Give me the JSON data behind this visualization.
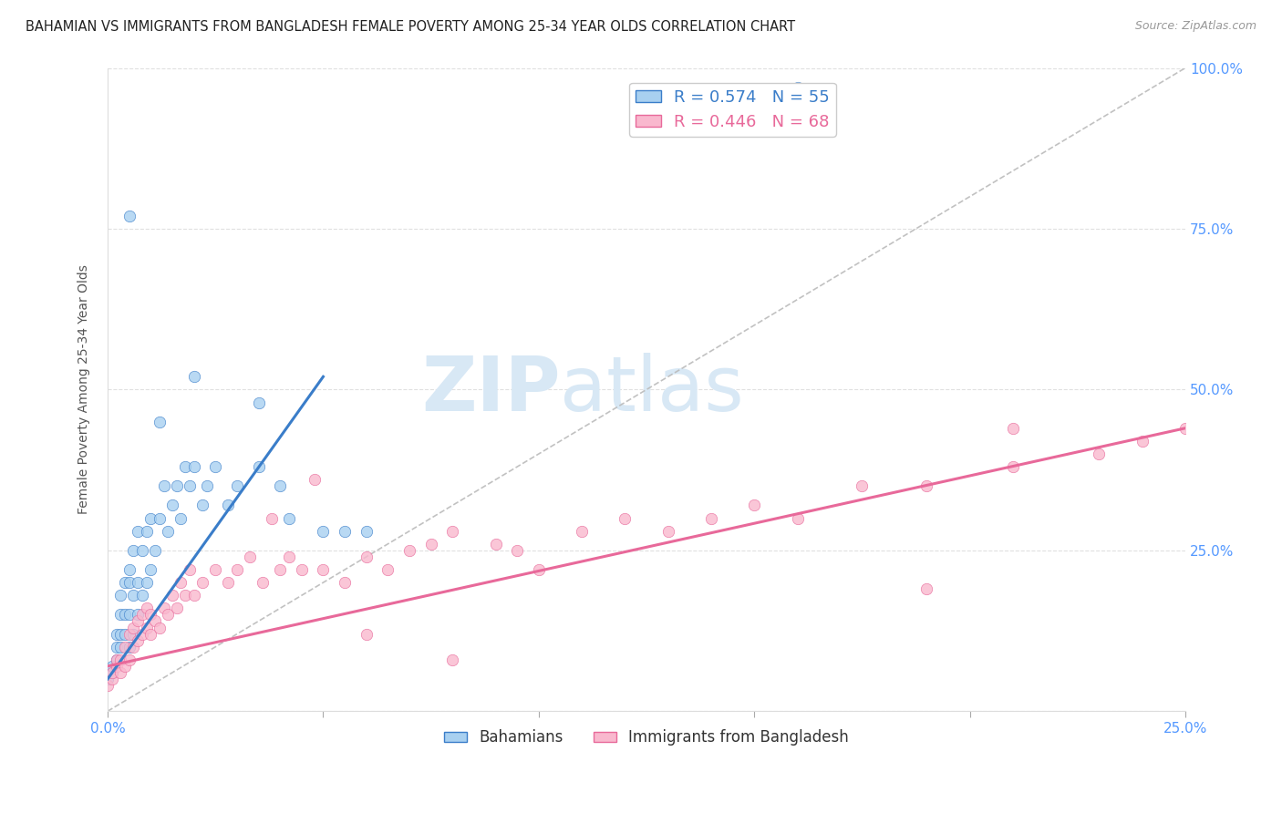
{
  "title": "BAHAMIAN VS IMMIGRANTS FROM BANGLADESH FEMALE POVERTY AMONG 25-34 YEAR OLDS CORRELATION CHART",
  "source": "Source: ZipAtlas.com",
  "ylabel": "Female Poverty Among 25-34 Year Olds",
  "xlim": [
    0.0,
    0.25
  ],
  "ylim": [
    0.0,
    1.0
  ],
  "color_blue": "#A8D0F0",
  "color_pink": "#F9B8CE",
  "color_line_blue": "#3A7DC9",
  "color_line_pink": "#E8699A",
  "watermark_color": "#D8E8F5",
  "diagonal_color": "#BBBBBB",
  "grid_color": "#DDDDDD",
  "bahamians_x": [
    0.0,
    0.001,
    0.001,
    0.002,
    0.002,
    0.002,
    0.003,
    0.003,
    0.003,
    0.003,
    0.004,
    0.004,
    0.004,
    0.005,
    0.005,
    0.005,
    0.005,
    0.006,
    0.006,
    0.006,
    0.007,
    0.007,
    0.007,
    0.008,
    0.008,
    0.009,
    0.009,
    0.01,
    0.01,
    0.011,
    0.012,
    0.013,
    0.014,
    0.015,
    0.016,
    0.017,
    0.018,
    0.019,
    0.02,
    0.022,
    0.023,
    0.025,
    0.028,
    0.03,
    0.035,
    0.04,
    0.042,
    0.05,
    0.055,
    0.06,
    0.012,
    0.02,
    0.035,
    0.16,
    0.005
  ],
  "bahamians_y": [
    0.05,
    0.06,
    0.07,
    0.08,
    0.1,
    0.12,
    0.1,
    0.12,
    0.15,
    0.18,
    0.12,
    0.15,
    0.2,
    0.1,
    0.15,
    0.2,
    0.22,
    0.12,
    0.18,
    0.25,
    0.15,
    0.2,
    0.28,
    0.18,
    0.25,
    0.2,
    0.28,
    0.22,
    0.3,
    0.25,
    0.3,
    0.35,
    0.28,
    0.32,
    0.35,
    0.3,
    0.38,
    0.35,
    0.38,
    0.32,
    0.35,
    0.38,
    0.32,
    0.35,
    0.38,
    0.35,
    0.3,
    0.28,
    0.28,
    0.28,
    0.45,
    0.52,
    0.48,
    0.97,
    0.77
  ],
  "bangladesh_x": [
    0.0,
    0.001,
    0.001,
    0.002,
    0.002,
    0.003,
    0.003,
    0.004,
    0.004,
    0.005,
    0.005,
    0.006,
    0.006,
    0.007,
    0.007,
    0.008,
    0.008,
    0.009,
    0.009,
    0.01,
    0.01,
    0.011,
    0.012,
    0.013,
    0.014,
    0.015,
    0.016,
    0.017,
    0.018,
    0.019,
    0.02,
    0.022,
    0.025,
    0.028,
    0.03,
    0.033,
    0.036,
    0.04,
    0.042,
    0.045,
    0.05,
    0.055,
    0.06,
    0.065,
    0.07,
    0.075,
    0.08,
    0.09,
    0.095,
    0.1,
    0.11,
    0.12,
    0.13,
    0.14,
    0.15,
    0.16,
    0.175,
    0.19,
    0.21,
    0.23,
    0.048,
    0.038,
    0.06,
    0.08,
    0.19,
    0.21,
    0.25,
    0.24
  ],
  "bangladesh_y": [
    0.04,
    0.05,
    0.06,
    0.07,
    0.08,
    0.06,
    0.08,
    0.07,
    0.1,
    0.08,
    0.12,
    0.1,
    0.13,
    0.11,
    0.14,
    0.12,
    0.15,
    0.13,
    0.16,
    0.12,
    0.15,
    0.14,
    0.13,
    0.16,
    0.15,
    0.18,
    0.16,
    0.2,
    0.18,
    0.22,
    0.18,
    0.2,
    0.22,
    0.2,
    0.22,
    0.24,
    0.2,
    0.22,
    0.24,
    0.22,
    0.22,
    0.2,
    0.24,
    0.22,
    0.25,
    0.26,
    0.28,
    0.26,
    0.25,
    0.22,
    0.28,
    0.3,
    0.28,
    0.3,
    0.32,
    0.3,
    0.35,
    0.35,
    0.38,
    0.4,
    0.36,
    0.3,
    0.12,
    0.08,
    0.19,
    0.44,
    0.44,
    0.42
  ]
}
